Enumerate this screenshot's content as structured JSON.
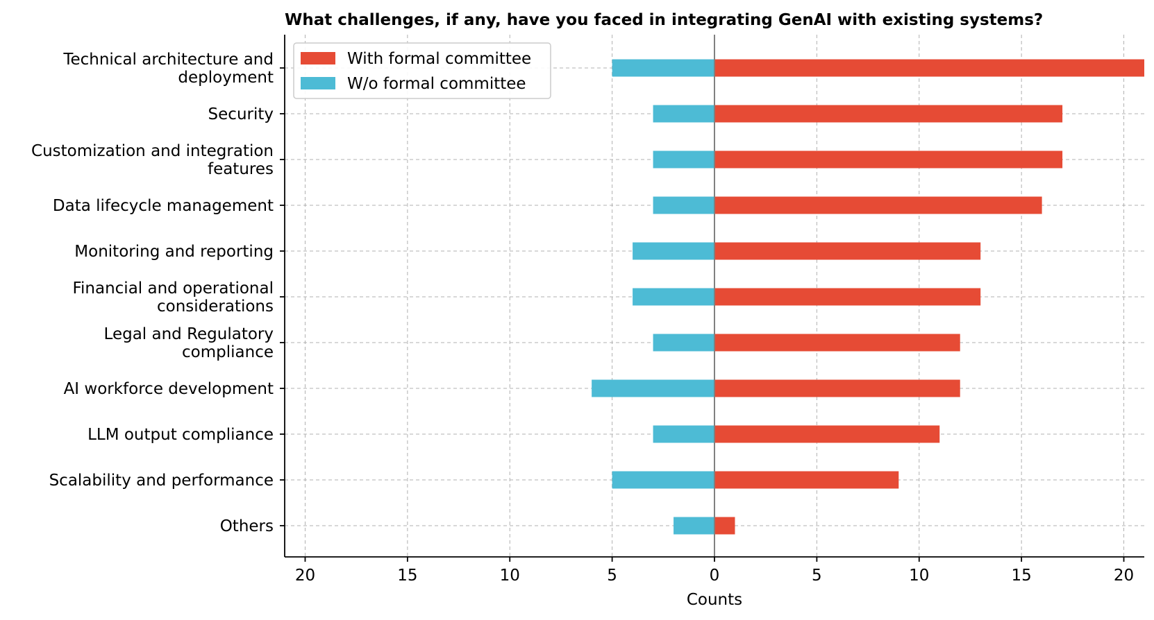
{
  "chart_data": {
    "type": "bar",
    "orientation": "horizontal-diverging",
    "title": "What challenges, if any, have you faced in integrating GenAI with existing systems?",
    "xlabel": "Counts",
    "ylabel": "",
    "xlim": [
      -21,
      21
    ],
    "x_ticks": [
      -20,
      -15,
      -10,
      -5,
      0,
      5,
      10,
      15,
      20
    ],
    "x_tick_labels": [
      "20",
      "15",
      "10",
      "5",
      "0",
      "5",
      "10",
      "15",
      "20"
    ],
    "grid": true,
    "legend_position": "top-left",
    "categories": [
      "Technical architecture and\ndeployment",
      "Security",
      "Customization and integration\nfeatures",
      "Data lifecycle management",
      "Monitoring and reporting",
      "Financial and operational\nconsiderations",
      "Legal and Regulatory\ncompliance",
      "AI workforce development",
      "LLM output compliance",
      "Scalability and performance",
      "Others"
    ],
    "series": [
      {
        "name": "With formal committee",
        "color": "#e64b35",
        "side": "right",
        "values": [
          21,
          17,
          17,
          16,
          13,
          13,
          12,
          12,
          11,
          9,
          1
        ]
      },
      {
        "name": "W/o formal committee",
        "color": "#4dbbd5",
        "side": "left",
        "values": [
          5,
          3,
          3,
          3,
          4,
          4,
          3,
          6,
          3,
          5,
          2
        ]
      }
    ]
  }
}
